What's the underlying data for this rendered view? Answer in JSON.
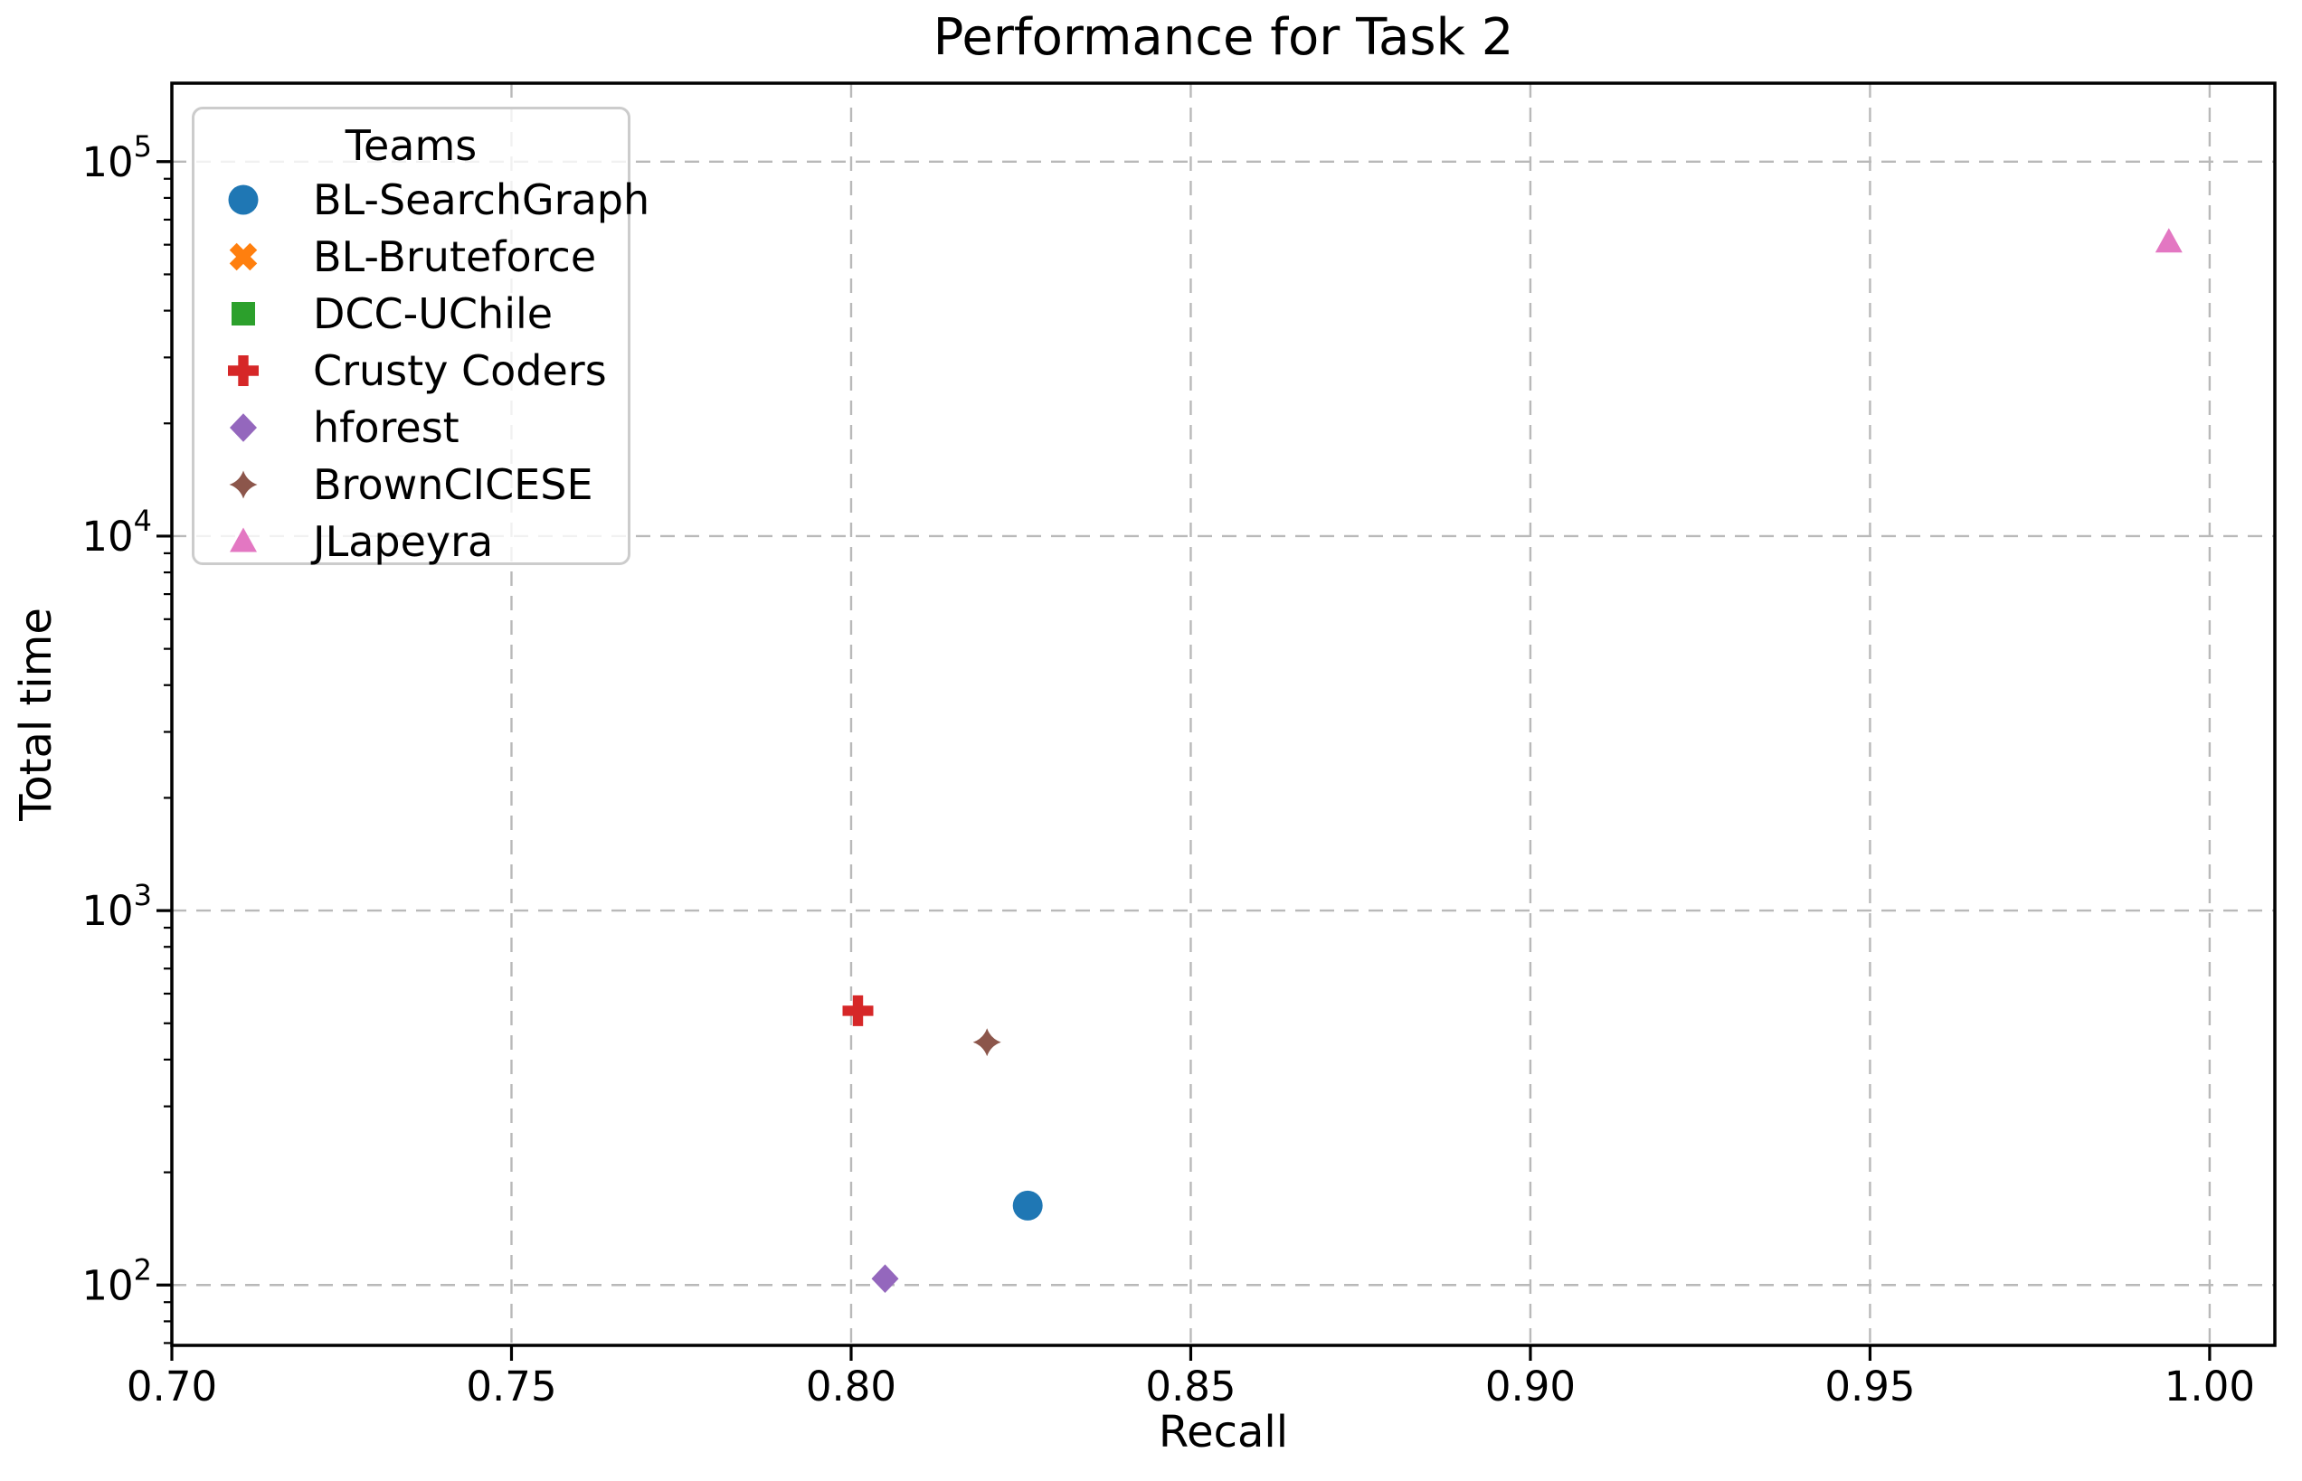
{
  "chart_data": {
    "type": "scatter",
    "title": "Performance for Task 2",
    "xlabel": "Recall",
    "ylabel": "Total time",
    "legend_title": "Teams",
    "legend_position": "upper left",
    "grid": true,
    "grid_style": "dashed",
    "grid_color": "#b9b9b9",
    "x_axis": {
      "min": 0.7,
      "max": 1.0096,
      "ticks": [
        0.7,
        0.75,
        0.8,
        0.85,
        0.9,
        0.95,
        1.0
      ],
      "tick_labels": [
        "0.70",
        "0.75",
        "0.80",
        "0.85",
        "0.90",
        "0.95",
        "1.00"
      ]
    },
    "y_axis": {
      "scale": "log",
      "min": 69,
      "max": 162000,
      "ticks": [
        100,
        1000,
        10000,
        100000
      ],
      "tick_base": "10",
      "tick_exponents": [
        "2",
        "3",
        "4",
        "5"
      ]
    },
    "series": [
      {
        "name": "BL-SearchGraph",
        "color": "#1f77b4",
        "marker": "circle",
        "points": [
          {
            "x": 0.826,
            "y": 163
          }
        ]
      },
      {
        "name": "BL-Bruteforce",
        "color": "#ff7f0e",
        "marker": "x",
        "points": []
      },
      {
        "name": "DCC-UChile",
        "color": "#2ca02c",
        "marker": "square",
        "points": []
      },
      {
        "name": "Crusty Coders",
        "color": "#d62728",
        "marker": "plus",
        "points": [
          {
            "x": 0.801,
            "y": 540
          }
        ]
      },
      {
        "name": "hforest",
        "color": "#9467bd",
        "marker": "diamond",
        "points": [
          {
            "x": 0.805,
            "y": 104
          }
        ]
      },
      {
        "name": "BrownCICESE",
        "color": "#8c564b",
        "marker": "star4",
        "points": [
          {
            "x": 0.82,
            "y": 445
          }
        ]
      },
      {
        "name": "JLapeyra",
        "color": "#e377c2",
        "marker": "triangle",
        "points": [
          {
            "x": 0.994,
            "y": 61000
          }
        ]
      }
    ]
  }
}
